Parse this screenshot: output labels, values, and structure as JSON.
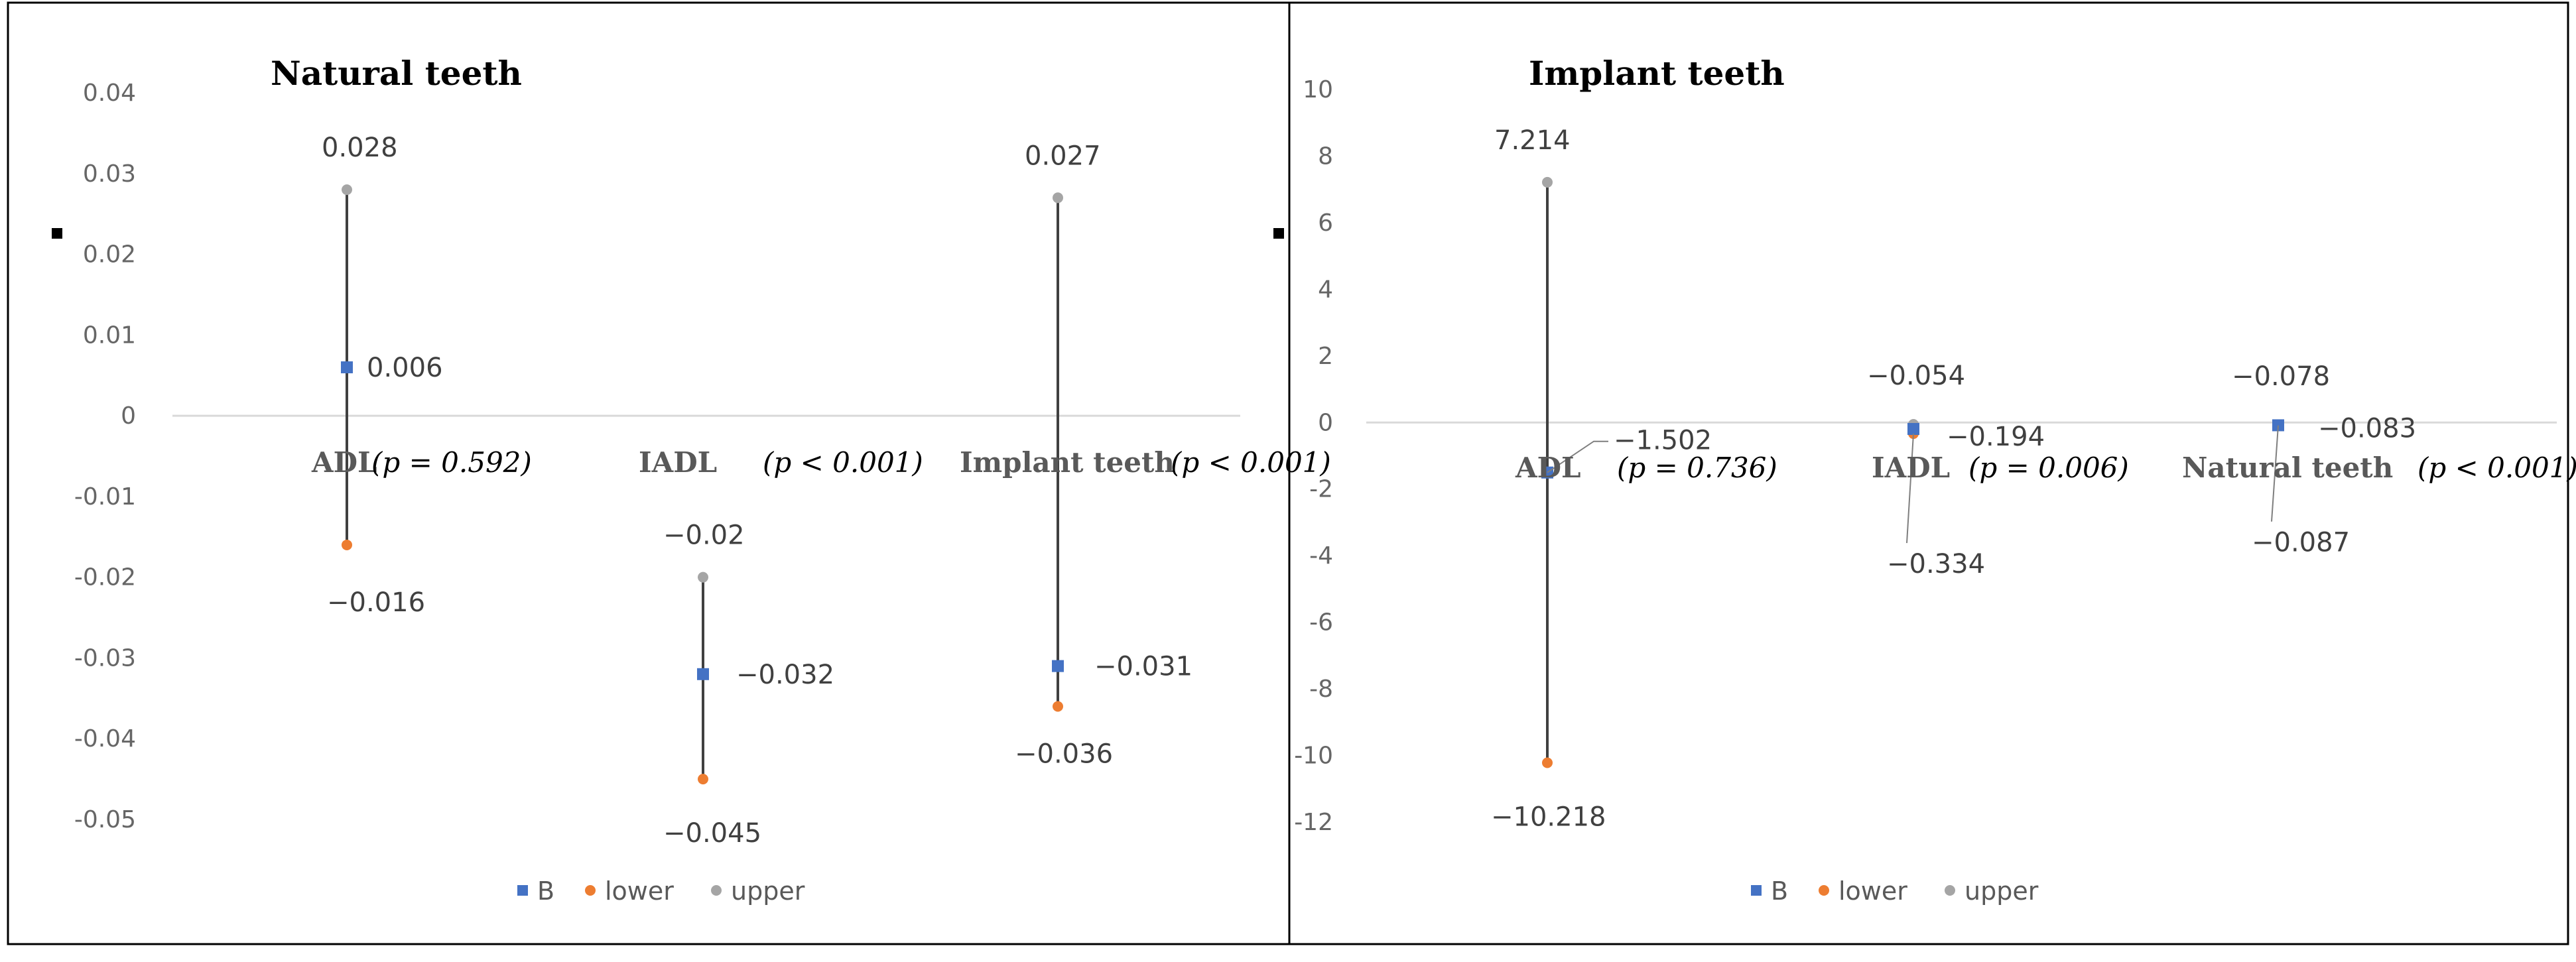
{
  "colors": {
    "B": "#4472c4",
    "lower": "#ed7d31",
    "upper": "#a5a5a5",
    "bar": "#404040",
    "axis": "#d9d9d9"
  },
  "chart_data": [
    {
      "type": "error-bar",
      "title": "Natural teeth",
      "ylim": [
        -0.05,
        0.04
      ],
      "yticks": [
        0.04,
        0.03,
        0.02,
        0.01,
        0,
        -0.01,
        -0.02,
        -0.03,
        -0.04,
        -0.05
      ],
      "ytick_labels": [
        "0.04",
        "0.03",
        "0.02",
        "0.01",
        "0",
        "-0.01",
        "-0.02",
        "-0.03",
        "-0.04",
        "-0.05"
      ],
      "categories": [
        {
          "name": "ADL",
          "p_text": "(p = 0.592)",
          "B": 0.006,
          "lower": -0.016,
          "upper": 0.028,
          "B_label": "0.006",
          "lower_label": "−0.016",
          "upper_label": "0.028"
        },
        {
          "name": "IADL",
          "p_text": "(p < 0.001)",
          "B": -0.032,
          "lower": -0.045,
          "upper": -0.02,
          "B_label": "−0.032",
          "lower_label": "−0.045",
          "upper_label": "−0.02"
        },
        {
          "name": "Implant teeth",
          "p_text": "(p < 0.001)",
          "B": -0.031,
          "lower": -0.036,
          "upper": 0.027,
          "B_label": "−0.031",
          "lower_label": "−0.036",
          "upper_label": "0.027"
        }
      ],
      "legend": [
        "B",
        "lower",
        "upper"
      ]
    },
    {
      "type": "error-bar",
      "title": "Implant teeth",
      "ylim": [
        -12,
        10
      ],
      "yticks": [
        10,
        8,
        6,
        4,
        2,
        0,
        -2,
        -4,
        -6,
        -8,
        -10,
        -12
      ],
      "ytick_labels": [
        "10",
        "8",
        "6",
        "4",
        "2",
        "0",
        "-2",
        "-4",
        "-6",
        "-8",
        "-10",
        "-12"
      ],
      "categories": [
        {
          "name": "ADL",
          "p_text": "(p = 0.736)",
          "B": -1.502,
          "lower": -10.218,
          "upper": 7.214,
          "B_label": "−1.502",
          "lower_label": "−10.218",
          "upper_label": "7.214"
        },
        {
          "name": "IADL",
          "p_text": "(p =  0.006)",
          "B": -0.194,
          "lower": -0.334,
          "upper": -0.054,
          "B_label": "−0.194",
          "lower_label": "−0.334",
          "upper_label": "−0.054"
        },
        {
          "name": "Natural teeth",
          "p_text": "(p < 0.001)",
          "B": -0.083,
          "lower": -0.087,
          "upper": -0.078,
          "B_label": "−0.083",
          "lower_label": "−0.087",
          "upper_label": "−0.078"
        }
      ],
      "legend": [
        "B",
        "lower",
        "upper"
      ]
    }
  ]
}
